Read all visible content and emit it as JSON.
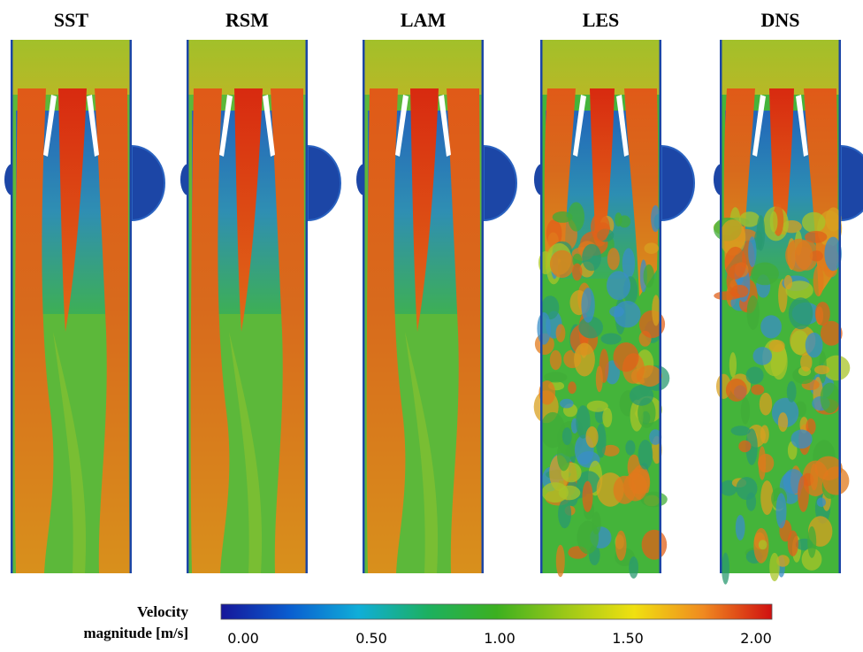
{
  "panels": [
    {
      "title": "SST"
    },
    {
      "title": "RSM"
    },
    {
      "title": "LAM"
    },
    {
      "title": "LES"
    },
    {
      "title": "DNS"
    }
  ],
  "colorbar": {
    "label_lines": [
      "Velocity",
      "magnitude [m/s]"
    ],
    "min": 0,
    "max": 2,
    "ticks": [
      {
        "value": 0,
        "label": "0.00"
      },
      {
        "value": 0.5,
        "label": "0.50"
      },
      {
        "value": 1,
        "label": "1.00"
      },
      {
        "value": 1.5,
        "label": "1.50"
      },
      {
        "value": 2,
        "label": "2.00"
      }
    ],
    "colors": [
      "#16169a",
      "#0a5ed0",
      "#10aed8",
      "#1cb060",
      "#3cb020",
      "#9cc818",
      "#f0e010",
      "#f08a20",
      "#d01010"
    ]
  }
}
